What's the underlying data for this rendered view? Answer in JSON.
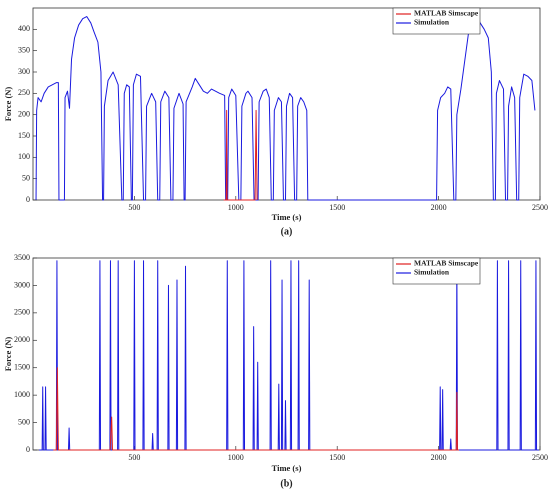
{
  "chart_data": [
    {
      "type": "line",
      "caption": "(a)",
      "xlabel": "Time (s)",
      "ylabel": "Force (N)",
      "xlim": [
        0,
        2500
      ],
      "xticks": [
        500,
        1000,
        1500,
        2000,
        2500
      ],
      "ylim": [
        0,
        450
      ],
      "yticks": [
        0,
        50,
        100,
        150,
        200,
        250,
        300,
        350,
        400
      ],
      "legend": "upper right",
      "series": [
        {
          "name": "MATLAB Simscape",
          "color": "#e02020",
          "x": [
            940,
            953,
            955,
            957,
            1095,
            1100,
            1105
          ],
          "values": [
            0,
            0,
            210,
            0,
            0,
            210,
            0
          ]
        },
        {
          "name": "Simulation",
          "color": "#1a1adf",
          "x": [
            15,
            18,
            25,
            40,
            55,
            75,
            95,
            115,
            125,
            128,
            155,
            158,
            170,
            180,
            190,
            205,
            225,
            245,
            265,
            285,
            300,
            320,
            335,
            343,
            348,
            352,
            370,
            395,
            420,
            438,
            445,
            450,
            462,
            475,
            485,
            490,
            495,
            510,
            530,
            545,
            555,
            560,
            585,
            605,
            615,
            625,
            630,
            650,
            670,
            680,
            690,
            695,
            720,
            740,
            745,
            750,
            755,
            785,
            800,
            820,
            840,
            860,
            880,
            900,
            920,
            945,
            950,
            960,
            965,
            980,
            1000,
            1015,
            1025,
            1030,
            1050,
            1060,
            1080,
            1090,
            1110,
            1115,
            1135,
            1150,
            1165,
            1175,
            1185,
            1190,
            1210,
            1225,
            1235,
            1245,
            1250,
            1265,
            1280,
            1290,
            1300,
            1305,
            1320,
            1335,
            1350,
            1355,
            1990,
            1995,
            2010,
            2030,
            2045,
            2060,
            2075,
            2085,
            2090,
            2110,
            2130,
            2150,
            2170,
            2190,
            2205,
            2225,
            2245,
            2260,
            2270,
            2280,
            2285,
            2300,
            2320,
            2330,
            2340,
            2345,
            2360,
            2375,
            2385,
            2395,
            2400,
            2420,
            2440,
            2460,
            2475
          ],
          "values": [
            0,
            210,
            240,
            230,
            250,
            265,
            270,
            275,
            275,
            0,
            0,
            240,
            255,
            215,
            330,
            380,
            410,
            425,
            430,
            415,
            395,
            370,
            300,
            0,
            0,
            220,
            280,
            300,
            270,
            0,
            0,
            250,
            270,
            265,
            0,
            0,
            270,
            295,
            290,
            0,
            0,
            220,
            250,
            230,
            0,
            0,
            230,
            255,
            240,
            0,
            0,
            215,
            250,
            225,
            0,
            0,
            230,
            265,
            285,
            270,
            255,
            250,
            260,
            255,
            250,
            245,
            0,
            0,
            240,
            260,
            245,
            0,
            0,
            220,
            250,
            255,
            240,
            0,
            0,
            230,
            255,
            260,
            240,
            0,
            0,
            210,
            240,
            230,
            0,
            0,
            220,
            250,
            240,
            0,
            0,
            220,
            240,
            230,
            210,
            0,
            0,
            210,
            240,
            250,
            265,
            260,
            0,
            0,
            200,
            260,
            330,
            400,
            425,
            430,
            415,
            400,
            380,
            300,
            0,
            0,
            250,
            280,
            260,
            0,
            0,
            220,
            265,
            240,
            0,
            0,
            240,
            295,
            290,
            280,
            210
          ]
        }
      ]
    },
    {
      "type": "line",
      "caption": "(b)",
      "xlabel": "Time (s)",
      "ylabel": "Force (N)",
      "xlim": [
        0,
        2500
      ],
      "xticks": [
        500,
        1000,
        1500,
        2000,
        2500
      ],
      "ylim": [
        0,
        3500
      ],
      "yticks": [
        0,
        500,
        1000,
        1500,
        2000,
        2500,
        3000,
        3500
      ],
      "legend": "upper right",
      "series": [
        {
          "name": "MATLAB Simscape",
          "color": "#e02020",
          "x": [
            100,
            115,
            120,
            125,
            380,
            388,
            392,
            2080,
            2087,
            2090,
            2093,
            2100
          ],
          "values": [
            0,
            0,
            1500,
            0,
            0,
            600,
            0,
            0,
            0,
            1050,
            0,
            0
          ]
        },
        {
          "name": "Simulation",
          "color": "#1a1adf",
          "x": [
            30,
            45,
            48,
            51,
            59,
            62,
            65,
            115,
            118,
            121,
            175,
            178,
            181,
            327,
            330,
            333,
            379,
            382,
            385,
            417,
            420,
            423,
            497,
            500,
            503,
            542,
            545,
            548,
            587,
            590,
            593,
            612,
            615,
            618,
            665,
            668,
            671,
            707,
            710,
            713,
            749,
            752,
            755,
            955,
            958,
            961,
            1037,
            1040,
            1043,
            1085,
            1088,
            1091,
            1105,
            1108,
            1111,
            1169,
            1172,
            1175,
            1209,
            1212,
            1215,
            1225,
            1228,
            1231,
            1242,
            1245,
            1248,
            1269,
            1272,
            1275,
            1307,
            1310,
            1313,
            1359,
            1362,
            1365,
            2005,
            2008,
            2011,
            2017,
            2020,
            2023,
            2057,
            2060,
            2063,
            2087,
            2090,
            2093,
            2287,
            2290,
            2293,
            2342,
            2345,
            2348,
            2402,
            2405,
            2408,
            2477,
            2480,
            2483,
            2495
          ],
          "values": [
            0,
            0,
            1150,
            0,
            0,
            1150,
            0,
            0,
            3450,
            0,
            0,
            400,
            0,
            0,
            3450,
            0,
            0,
            3450,
            0,
            0,
            3450,
            0,
            0,
            3450,
            0,
            0,
            3450,
            0,
            0,
            300,
            0,
            0,
            3450,
            0,
            0,
            3000,
            0,
            0,
            3100,
            0,
            0,
            3350,
            0,
            0,
            3450,
            0,
            0,
            3450,
            0,
            0,
            2250,
            0,
            0,
            1600,
            0,
            0,
            3450,
            0,
            0,
            1200,
            0,
            0,
            3100,
            0,
            0,
            900,
            0,
            0,
            3450,
            0,
            0,
            3450,
            0,
            0,
            3100,
            0,
            0,
            1150,
            0,
            0,
            1100,
            0,
            0,
            200,
            0,
            0,
            3450,
            0,
            0,
            3450,
            0,
            0,
            3450,
            0,
            0,
            3450,
            0,
            0,
            3450,
            0,
            0
          ]
        }
      ]
    }
  ]
}
